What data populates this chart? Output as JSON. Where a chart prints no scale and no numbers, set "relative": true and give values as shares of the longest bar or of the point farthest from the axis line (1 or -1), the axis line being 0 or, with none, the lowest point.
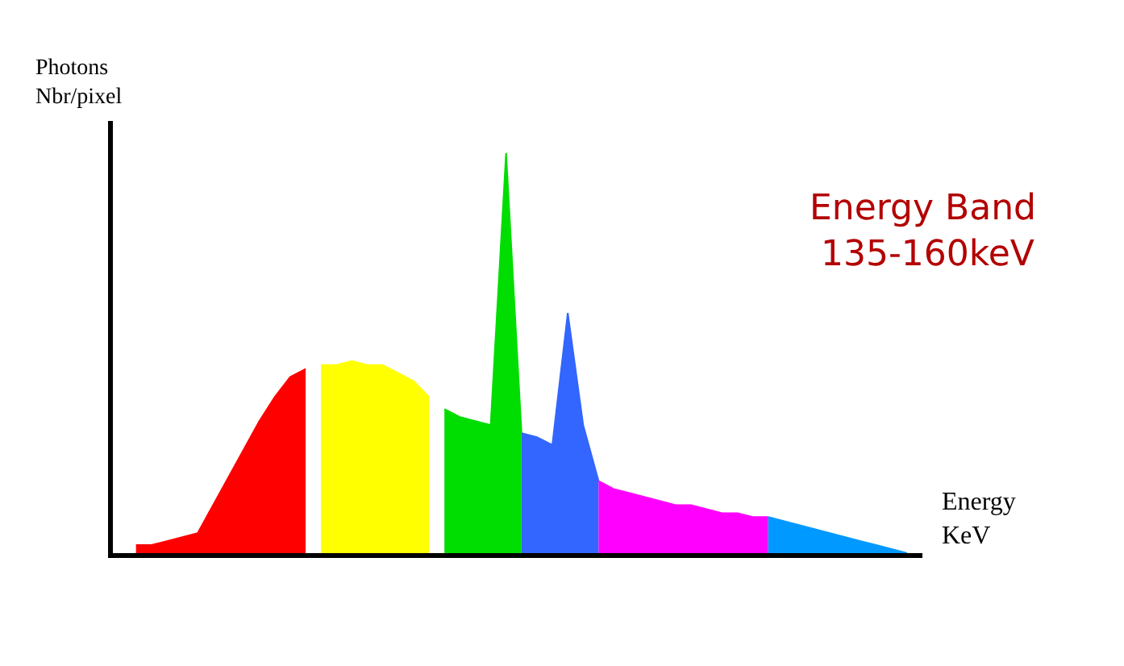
{
  "chart_data": {
    "type": "area",
    "relative": true,
    "categories": [
      null,
      null,
      null,
      null,
      null,
      null,
      null,
      null,
      null,
      null,
      null,
      null,
      null,
      null,
      null,
      null,
      null,
      null,
      null,
      null,
      null,
      null,
      null,
      null,
      null,
      null,
      null,
      null,
      null,
      null,
      null,
      null,
      null,
      null,
      null,
      null,
      null,
      null,
      null,
      null,
      null,
      null,
      null,
      null,
      null,
      null,
      null,
      null,
      null,
      null,
      null
    ],
    "ylabel": "Photons\nNbr/pixel",
    "xlabel": "Energy\nKeV",
    "annotations": [
      "Energy Band\n 135-160keV"
    ],
    "series": [
      {
        "color": "#ff0000",
        "values": [
          0.02,
          0.02,
          0.03,
          0.04,
          0.05,
          0.12,
          0.19,
          0.26,
          0.33,
          0.39,
          0.44,
          0.46,
          null,
          null,
          null,
          null,
          null,
          null,
          null,
          null,
          null,
          null,
          null,
          null,
          null,
          null,
          null,
          null,
          null,
          null,
          null,
          null,
          null,
          null,
          null,
          null,
          null,
          null,
          null,
          null,
          null,
          null,
          null,
          null,
          null,
          null,
          null,
          null,
          null,
          null,
          null
        ]
      },
      {
        "color": "#ffff00",
        "values": [
          null,
          null,
          null,
          null,
          null,
          null,
          null,
          null,
          null,
          null,
          null,
          null,
          0.47,
          0.47,
          0.48,
          0.47,
          0.47,
          0.45,
          0.43,
          0.39,
          null,
          null,
          null,
          null,
          null,
          null,
          null,
          null,
          null,
          null,
          null,
          null,
          null,
          null,
          null,
          null,
          null,
          null,
          null,
          null,
          null,
          null,
          null,
          null,
          null,
          null,
          null,
          null,
          null,
          null,
          null
        ]
      },
      {
        "color": "#00dd00",
        "values": [
          null,
          null,
          null,
          null,
          null,
          null,
          null,
          null,
          null,
          null,
          null,
          null,
          null,
          null,
          null,
          null,
          null,
          null,
          null,
          null,
          0.36,
          0.34,
          0.33,
          0.32,
          1,
          0.3,
          null,
          null,
          null,
          null,
          null,
          null,
          null,
          null,
          null,
          null,
          null,
          null,
          null,
          null,
          null,
          null,
          null,
          null,
          null,
          null,
          null,
          null,
          null,
          null,
          null
        ]
      },
      {
        "color": "#3366ff",
        "values": [
          null,
          null,
          null,
          null,
          null,
          null,
          null,
          null,
          null,
          null,
          null,
          null,
          null,
          null,
          null,
          null,
          null,
          null,
          null,
          null,
          null,
          null,
          null,
          null,
          null,
          0.3,
          0.29,
          0.27,
          0.6,
          0.32,
          0.18,
          null,
          null,
          null,
          null,
          null,
          null,
          null,
          null,
          null,
          null,
          null,
          null,
          null,
          null,
          null,
          null,
          null,
          null,
          null,
          null
        ]
      },
      {
        "color": "#ff00ff",
        "values": [
          null,
          null,
          null,
          null,
          null,
          null,
          null,
          null,
          null,
          null,
          null,
          null,
          null,
          null,
          null,
          null,
          null,
          null,
          null,
          null,
          null,
          null,
          null,
          null,
          null,
          null,
          null,
          null,
          null,
          null,
          0.18,
          0.16,
          0.15,
          0.14,
          0.13,
          0.12,
          0.12,
          0.11,
          0.1,
          0.1,
          0.09,
          0.09,
          null,
          null,
          null,
          null,
          null,
          null,
          null,
          null,
          null
        ]
      },
      {
        "color": "#0099ff",
        "values": [
          null,
          null,
          null,
          null,
          null,
          null,
          null,
          null,
          null,
          null,
          null,
          null,
          null,
          null,
          null,
          null,
          null,
          null,
          null,
          null,
          null,
          null,
          null,
          null,
          null,
          null,
          null,
          null,
          null,
          null,
          null,
          null,
          null,
          null,
          null,
          null,
          null,
          null,
          null,
          null,
          null,
          0.09,
          0.08,
          0.07,
          0.06,
          0.05,
          0.04,
          0.03,
          0.02,
          0.01,
          0
        ]
      }
    ]
  }
}
